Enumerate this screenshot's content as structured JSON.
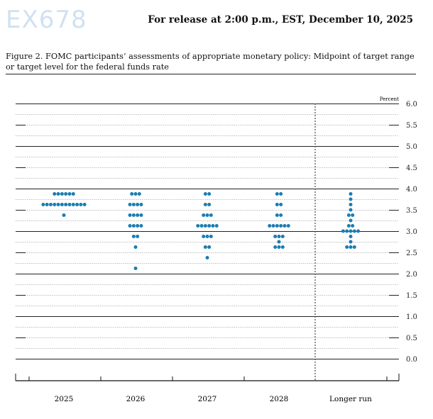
{
  "header": {
    "release": "For release at 2:00 p.m., EST, December 10, 2025"
  },
  "caption": "Figure 2. FOMC participants’ assessments of appropriate monetary policy: Midpoint of target range or target level for the federal funds rate",
  "watermark": "EX678",
  "chart_data": {
    "type": "scatter",
    "title": "",
    "ylabel": "Percent",
    "ylim": [
      0,
      6
    ],
    "yticks": [
      "6.0",
      "5.5",
      "5.0",
      "4.5",
      "4.0",
      "3.5",
      "3.0",
      "2.5",
      "2.0",
      "1.5",
      "1.0",
      "0.5",
      "0.0"
    ],
    "grid": true,
    "dot_color": "#1b7db2",
    "categories": [
      "2025",
      "2026",
      "2027",
      "2028",
      "Longer run"
    ],
    "series": [
      {
        "category": "2025",
        "dots": [
          {
            "y": 3.875,
            "count": 6
          },
          {
            "y": 3.625,
            "count": 12
          },
          {
            "y": 3.375,
            "count": 1
          }
        ]
      },
      {
        "category": "2026",
        "dots": [
          {
            "y": 3.875,
            "count": 3
          },
          {
            "y": 3.625,
            "count": 4
          },
          {
            "y": 3.375,
            "count": 4
          },
          {
            "y": 3.125,
            "count": 4
          },
          {
            "y": 2.875,
            "count": 2
          },
          {
            "y": 2.625,
            "count": 1
          },
          {
            "y": 2.125,
            "count": 1
          }
        ]
      },
      {
        "category": "2027",
        "dots": [
          {
            "y": 3.875,
            "count": 2
          },
          {
            "y": 3.625,
            "count": 2
          },
          {
            "y": 3.375,
            "count": 3
          },
          {
            "y": 3.125,
            "count": 6
          },
          {
            "y": 2.875,
            "count": 3
          },
          {
            "y": 2.625,
            "count": 2
          },
          {
            "y": 2.375,
            "count": 1
          }
        ]
      },
      {
        "category": "2028",
        "dots": [
          {
            "y": 3.875,
            "count": 2
          },
          {
            "y": 3.625,
            "count": 2
          },
          {
            "y": 3.375,
            "count": 2
          },
          {
            "y": 3.125,
            "count": 6
          },
          {
            "y": 2.875,
            "count": 3
          },
          {
            "y": 2.75,
            "count": 1
          },
          {
            "y": 2.625,
            "count": 3
          }
        ]
      },
      {
        "category": "Longer run",
        "dots": [
          {
            "y": 3.875,
            "count": 1
          },
          {
            "y": 3.75,
            "count": 1
          },
          {
            "y": 3.625,
            "count": 1
          },
          {
            "y": 3.5,
            "count": 1
          },
          {
            "y": 3.375,
            "count": 2
          },
          {
            "y": 3.25,
            "count": 1
          },
          {
            "y": 3.125,
            "count": 2
          },
          {
            "y": 3.0,
            "count": 5
          },
          {
            "y": 2.875,
            "count": 1
          },
          {
            "y": 2.75,
            "count": 1
          },
          {
            "y": 2.625,
            "count": 3
          }
        ]
      }
    ]
  }
}
